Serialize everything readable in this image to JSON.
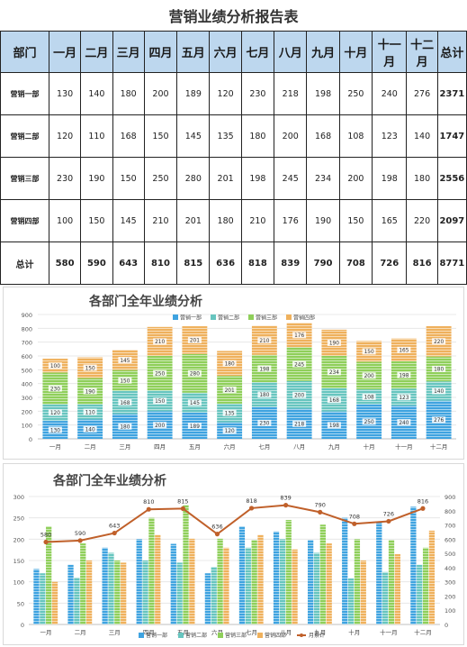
{
  "sheet": {
    "title": "营销业绩分析报告表",
    "headers": [
      "部门",
      "一月",
      "二月",
      "三月",
      "四月",
      "五月",
      "六月",
      "七月",
      "八月",
      "九月",
      "十月",
      "十一月",
      "十二月",
      "总计"
    ],
    "rows": [
      {
        "dept": "营销一部",
        "values": [
          130,
          140,
          180,
          200,
          189,
          120,
          230,
          218,
          198,
          250,
          240,
          276
        ],
        "total": "2371"
      },
      {
        "dept": "营销二部",
        "values": [
          120,
          110,
          168,
          150,
          145,
          135,
          180,
          200,
          168,
          108,
          123,
          140
        ],
        "total": "1747"
      },
      {
        "dept": "营销三部",
        "values": [
          230,
          190,
          150,
          250,
          280,
          201,
          198,
          245,
          234,
          200,
          198,
          180
        ],
        "total": "2556"
      },
      {
        "dept": "营销四部",
        "values": [
          100,
          150,
          145,
          210,
          201,
          180,
          210,
          176,
          190,
          150,
          165,
          220
        ],
        "total": "2097"
      }
    ],
    "sum_row": {
      "label": "总计",
      "values": [
        580,
        590,
        643,
        810,
        815,
        636,
        818,
        839,
        790,
        708,
        726,
        816
      ],
      "total": "8771"
    }
  },
  "chart_data": [
    {
      "type": "bar",
      "stacked": true,
      "title": "各部门全年业绩分析",
      "categories": [
        "一月",
        "二月",
        "三月",
        "四月",
        "五月",
        "六月",
        "七月",
        "八月",
        "九月",
        "十月",
        "十一月",
        "十二月"
      ],
      "series": [
        {
          "name": "营销一部",
          "values": [
            130,
            140,
            180,
            200,
            189,
            120,
            230,
            218,
            198,
            250,
            240,
            276
          ],
          "color": "#3fa3e0"
        },
        {
          "name": "营销二部",
          "values": [
            120,
            110,
            168,
            150,
            145,
            135,
            180,
            200,
            168,
            108,
            123,
            140
          ],
          "color": "#67c5bf"
        },
        {
          "name": "营销三部",
          "values": [
            230,
            190,
            150,
            250,
            280,
            201,
            198,
            245,
            234,
            200,
            198,
            180
          ],
          "color": "#8fcf5a"
        },
        {
          "name": "营销四部",
          "values": [
            100,
            150,
            145,
            210,
            201,
            180,
            210,
            176,
            190,
            150,
            165,
            220
          ],
          "color": "#efb15d"
        }
      ],
      "ylim": [
        0,
        900
      ],
      "yticks": [
        0,
        100,
        200,
        300,
        400,
        500,
        600,
        700,
        800,
        900
      ],
      "legend": "top-right",
      "grid": true
    },
    {
      "type": "bar",
      "combo": "bar+line",
      "title": "各部门全年业绩分析",
      "categories": [
        "一月",
        "二月",
        "三月",
        "四月",
        "五月",
        "六月",
        "七月",
        "八月",
        "九月",
        "十月",
        "十一月",
        "十二月"
      ],
      "series": [
        {
          "name": "营销一部",
          "values": [
            130,
            140,
            180,
            200,
            189,
            120,
            230,
            218,
            198,
            250,
            240,
            276
          ],
          "color": "#3fa3e0",
          "axis": "left"
        },
        {
          "name": "营销二部",
          "values": [
            120,
            110,
            168,
            150,
            145,
            135,
            180,
            200,
            168,
            108,
            123,
            140
          ],
          "color": "#67c5bf",
          "axis": "left"
        },
        {
          "name": "营销三部",
          "values": [
            230,
            190,
            150,
            250,
            280,
            201,
            198,
            245,
            234,
            200,
            198,
            180
          ],
          "color": "#8fcf5a",
          "axis": "left"
        },
        {
          "name": "营销四部",
          "values": [
            100,
            150,
            145,
            210,
            201,
            180,
            210,
            176,
            190,
            150,
            165,
            220
          ],
          "color": "#efb15d",
          "axis": "left"
        },
        {
          "name": "月累计",
          "type": "line",
          "values": [
            580,
            590,
            643,
            810,
            815,
            636,
            818,
            839,
            790,
            708,
            726,
            816
          ],
          "color": "#c0602a",
          "axis": "right"
        }
      ],
      "ylim": [
        0,
        300
      ],
      "yticks": [
        0,
        50,
        100,
        150,
        200,
        250,
        300
      ],
      "y2lim": [
        0,
        900
      ],
      "y2ticks": [
        0,
        100,
        200,
        300,
        400,
        500,
        600,
        700,
        800,
        900
      ],
      "legend": "bottom",
      "grid": true
    }
  ]
}
